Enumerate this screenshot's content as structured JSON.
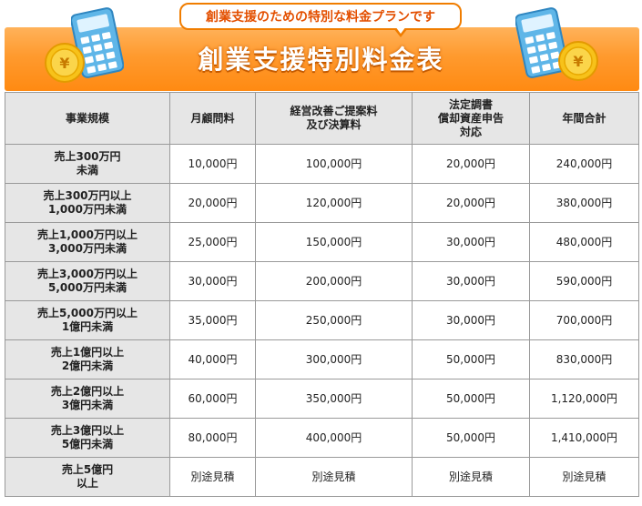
{
  "banner": {
    "bubble_text": "創業支援のための特別な料金プランです",
    "title": "創業支援特別料金表"
  },
  "icons": [
    "calculator-icon",
    "yen-coin-icon"
  ],
  "colors": {
    "banner": "#ff9a2e",
    "bubble_text": "#e34f00",
    "header_bg": "#e6e6e6"
  },
  "table": {
    "headers": [
      [
        "事業規模"
      ],
      [
        "月顧問料"
      ],
      [
        "経営改善ご提案料",
        "及び決算料"
      ],
      [
        "法定調書",
        "償却資産申告",
        "対応"
      ],
      [
        "年間合計"
      ]
    ],
    "rows": [
      {
        "scale": [
          "売上300万円",
          "未満"
        ],
        "monthly": "10,000円",
        "proposal": "100,000円",
        "statutory": "20,000円",
        "annual": "240,000円"
      },
      {
        "scale": [
          "売上300万円以上",
          "1,000万円未満"
        ],
        "monthly": "20,000円",
        "proposal": "120,000円",
        "statutory": "20,000円",
        "annual": "380,000円"
      },
      {
        "scale": [
          "売上1,000万円以上",
          "3,000万円未満"
        ],
        "monthly": "25,000円",
        "proposal": "150,000円",
        "statutory": "30,000円",
        "annual": "480,000円"
      },
      {
        "scale": [
          "売上3,000万円以上",
          "5,000万円未満"
        ],
        "monthly": "30,000円",
        "proposal": "200,000円",
        "statutory": "30,000円",
        "annual": "590,000円"
      },
      {
        "scale": [
          "売上5,000万円以上",
          "1億円未満"
        ],
        "monthly": "35,000円",
        "proposal": "250,000円",
        "statutory": "30,000円",
        "annual": "700,000円"
      },
      {
        "scale": [
          "売上1億円以上",
          "2億円未満"
        ],
        "monthly": "40,000円",
        "proposal": "300,000円",
        "statutory": "50,000円",
        "annual": "830,000円"
      },
      {
        "scale": [
          "売上2億円以上",
          "3億円未満"
        ],
        "monthly": "60,000円",
        "proposal": "350,000円",
        "statutory": "50,000円",
        "annual": "1,120,000円"
      },
      {
        "scale": [
          "売上3億円以上",
          "5億円未満"
        ],
        "monthly": "80,000円",
        "proposal": "400,000円",
        "statutory": "50,000円",
        "annual": "1,410,000円"
      },
      {
        "scale": [
          "売上5億円",
          "以上"
        ],
        "monthly": "別途見積",
        "proposal": "別途見積",
        "statutory": "別途見積",
        "annual": "別途見積"
      }
    ]
  }
}
